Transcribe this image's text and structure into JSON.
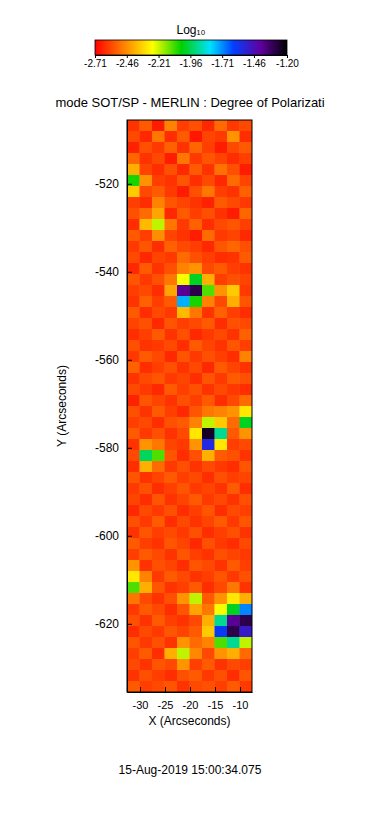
{
  "chart_data": {
    "type": "heatmap",
    "title": "mode SOT/SP - MERLIN : Degree of Polarizati",
    "annotation": "15-Aug-2019 15:00:34.075",
    "xlabel": "X (Arcseconds)",
    "ylabel": "Y (Arcseconds)",
    "xlim": [
      -32.6,
      -7.6
    ],
    "ylim": [
      -635.5,
      -505.5
    ],
    "xticks": [
      -30,
      -25,
      -20,
      -15,
      -10
    ],
    "yticks": [
      -620,
      -600,
      -580,
      -560,
      -540,
      -520
    ],
    "x": [
      -31.35,
      -28.85,
      -26.35,
      -23.85,
      -21.35,
      -18.85,
      -16.35,
      -13.85,
      -11.35,
      -8.85
    ],
    "y": [
      -506.75,
      -509.25,
      -511.75,
      -514.25,
      -516.75,
      -519.25,
      -521.75,
      -524.25,
      -526.75,
      -529.25,
      -531.75,
      -534.25,
      -536.75,
      -539.25,
      -541.75,
      -544.25,
      -546.75,
      -549.25,
      -551.75,
      -554.25,
      -556.75,
      -559.25,
      -561.75,
      -564.25,
      -566.75,
      -569.25,
      -571.75,
      -574.25,
      -576.75,
      -579.25,
      -581.75,
      -584.25,
      -586.75,
      -589.25,
      -591.75,
      -594.25,
      -596.75,
      -599.25,
      -601.75,
      -604.25,
      -606.75,
      -609.25,
      -611.75,
      -614.25,
      -616.75,
      -619.25,
      -621.75,
      -624.25,
      -626.75,
      -629.25,
      -631.75,
      -634.25
    ],
    "z": [
      [
        -2.62,
        -2.55,
        -2.66,
        -2.48,
        -2.6,
        -2.57,
        -2.64,
        -2.52,
        -2.61,
        -2.58
      ],
      [
        -2.58,
        -2.64,
        -2.5,
        -2.63,
        -2.55,
        -2.67,
        -2.59,
        -2.61,
        -2.45,
        -2.63
      ],
      [
        -2.65,
        -2.57,
        -2.61,
        -2.54,
        -2.62,
        -2.53,
        -2.6,
        -2.66,
        -2.58,
        -2.55
      ],
      [
        -2.53,
        -2.62,
        -2.58,
        -2.66,
        -2.5,
        -2.61,
        -2.56,
        -2.59,
        -2.63,
        -2.6
      ],
      [
        -2.4,
        -2.59,
        -2.63,
        -2.57,
        -2.64,
        -2.55,
        -2.62,
        -2.51,
        -2.57,
        -2.66
      ],
      [
        -2.05,
        -2.45,
        -2.6,
        -2.62,
        -2.56,
        -2.63,
        -2.58,
        -2.64,
        -2.52,
        -2.59
      ],
      [
        -2.35,
        -2.58,
        -2.55,
        -2.61,
        -2.66,
        -2.57,
        -2.5,
        -2.6,
        -2.62,
        -2.54
      ],
      [
        -2.6,
        -2.63,
        -2.48,
        -2.56,
        -2.59,
        -2.62,
        -2.65,
        -2.55,
        -2.58,
        -2.61
      ],
      [
        -2.57,
        -2.52,
        -2.42,
        -2.64,
        -2.55,
        -2.6,
        -2.57,
        -2.62,
        -2.66,
        -2.53
      ],
      [
        -2.63,
        -2.38,
        -2.2,
        -2.5,
        -2.61,
        -2.54,
        -2.63,
        -2.58,
        -2.56,
        -2.6
      ],
      [
        -2.55,
        -2.6,
        -2.46,
        -2.59,
        -2.62,
        -2.66,
        -2.52,
        -2.61,
        -2.59,
        -2.64
      ],
      [
        -2.61,
        -2.56,
        -2.63,
        -2.54,
        -2.58,
        -2.6,
        -2.64,
        -2.56,
        -2.53,
        -2.57
      ],
      [
        -2.58,
        -2.64,
        -2.59,
        -2.61,
        -2.52,
        -2.57,
        -2.6,
        -2.63,
        -2.62,
        -2.55
      ],
      [
        -2.64,
        -2.55,
        -2.62,
        -2.57,
        -2.48,
        -2.45,
        -2.58,
        -2.55,
        -2.6,
        -2.62
      ],
      [
        -2.56,
        -2.61,
        -2.57,
        -2.5,
        -2.25,
        -2.0,
        -2.4,
        -2.6,
        -2.57,
        -2.59
      ],
      [
        -2.6,
        -2.58,
        -2.63,
        -2.42,
        -1.4,
        -1.3,
        -2.1,
        -2.45,
        -2.35,
        -2.61
      ],
      [
        -2.62,
        -2.54,
        -2.6,
        -2.55,
        -1.75,
        -2.05,
        -2.48,
        -2.58,
        -2.4,
        -2.56
      ],
      [
        -2.55,
        -2.63,
        -2.58,
        -2.61,
        -2.38,
        -2.5,
        -2.62,
        -2.54,
        -2.6,
        -2.63
      ],
      [
        -2.59,
        -2.57,
        -2.64,
        -2.56,
        -2.6,
        -2.58,
        -2.55,
        -2.63,
        -2.57,
        -2.58
      ],
      [
        -2.63,
        -2.6,
        -2.55,
        -2.62,
        -2.57,
        -2.64,
        -2.61,
        -2.58,
        -2.62,
        -2.54
      ],
      [
        -2.57,
        -2.62,
        -2.61,
        -2.58,
        -2.63,
        -2.55,
        -2.59,
        -2.62,
        -2.56,
        -2.6
      ],
      [
        -2.61,
        -2.55,
        -2.58,
        -2.64,
        -2.56,
        -2.61,
        -2.57,
        -2.6,
        -2.63,
        -2.48
      ],
      [
        -2.54,
        -2.63,
        -2.6,
        -2.57,
        -2.62,
        -2.58,
        -2.64,
        -2.55,
        -2.59,
        -2.62
      ],
      [
        -2.62,
        -2.58,
        -2.56,
        -2.61,
        -2.59,
        -2.63,
        -2.56,
        -2.61,
        -2.55,
        -2.57
      ],
      [
        -2.58,
        -2.61,
        -2.64,
        -2.55,
        -2.6,
        -2.57,
        -2.62,
        -2.58,
        -2.61,
        -2.63
      ],
      [
        -2.65,
        -2.56,
        -2.59,
        -2.62,
        -2.57,
        -2.6,
        -2.55,
        -2.63,
        -2.58,
        -2.52
      ],
      [
        -2.57,
        -2.62,
        -2.55,
        -2.6,
        -2.64,
        -2.56,
        -2.5,
        -2.48,
        -2.45,
        -2.3
      ],
      [
        -2.6,
        -2.58,
        -2.63,
        -2.57,
        -2.55,
        -2.48,
        -2.2,
        -2.35,
        -2.52,
        -2.0
      ],
      [
        -2.55,
        -2.61,
        -2.57,
        -2.62,
        -2.58,
        -2.3,
        -1.25,
        -1.9,
        -2.55,
        -2.45
      ],
      [
        -2.62,
        -2.45,
        -2.5,
        -2.59,
        -2.61,
        -2.45,
        -1.55,
        -2.3,
        -2.6,
        -2.58
      ],
      [
        -2.58,
        -1.95,
        -2.1,
        -2.56,
        -2.63,
        -2.57,
        -2.4,
        -2.55,
        -2.57,
        -2.62
      ],
      [
        -2.63,
        -2.4,
        -2.52,
        -2.61,
        -2.57,
        -2.62,
        -2.58,
        -2.61,
        -2.63,
        -2.56
      ],
      [
        -2.56,
        -2.62,
        -2.59,
        -2.55,
        -2.6,
        -2.58,
        -2.63,
        -2.57,
        -2.6,
        -2.59
      ],
      [
        -2.61,
        -2.57,
        -2.63,
        -2.6,
        -2.56,
        -2.61,
        -2.59,
        -2.62,
        -2.55,
        -2.63
      ],
      [
        -2.59,
        -2.63,
        -2.56,
        -2.62,
        -2.59,
        -2.55,
        -2.61,
        -2.58,
        -2.62,
        -2.57
      ],
      [
        -2.64,
        -2.58,
        -2.61,
        -2.57,
        -2.63,
        -2.6,
        -2.56,
        -2.63,
        -2.58,
        -2.6
      ],
      [
        -2.57,
        -2.61,
        -2.55,
        -2.63,
        -2.58,
        -2.62,
        -2.59,
        -2.55,
        -2.61,
        -2.56
      ],
      [
        -2.62,
        -2.56,
        -2.6,
        -2.58,
        -2.61,
        -2.57,
        -2.63,
        -2.6,
        -2.57,
        -2.62
      ],
      [
        -2.55,
        -2.6,
        -2.62,
        -2.56,
        -2.59,
        -2.64,
        -2.57,
        -2.61,
        -2.63,
        -2.58
      ],
      [
        -2.6,
        -2.55,
        -2.58,
        -2.62,
        -2.56,
        -2.6,
        -2.62,
        -2.57,
        -2.59,
        -2.61
      ],
      [
        -2.45,
        -2.62,
        -2.57,
        -2.59,
        -2.63,
        -2.56,
        -2.58,
        -2.62,
        -2.55,
        -2.6
      ],
      [
        -2.3,
        -2.48,
        -2.61,
        -2.55,
        -2.58,
        -2.62,
        -2.6,
        -2.56,
        -2.61,
        -2.57
      ],
      [
        -2.1,
        -2.4,
        -2.56,
        -2.62,
        -2.6,
        -2.55,
        -2.63,
        -2.58,
        -2.5,
        -2.62
      ],
      [
        -2.5,
        -2.58,
        -2.62,
        -2.57,
        -2.45,
        -2.2,
        -2.55,
        -2.45,
        -2.3,
        -2.4
      ],
      [
        -2.61,
        -2.55,
        -2.58,
        -2.63,
        -2.56,
        -2.42,
        -2.5,
        -2.25,
        -2.0,
        -1.7
      ],
      [
        -2.57,
        -2.62,
        -2.55,
        -2.6,
        -2.62,
        -2.58,
        -2.4,
        -1.9,
        -1.4,
        -1.3
      ],
      [
        -2.63,
        -2.58,
        -2.61,
        -2.56,
        -2.59,
        -2.55,
        -2.35,
        -1.6,
        -1.3,
        -1.5
      ],
      [
        -2.56,
        -2.61,
        -2.57,
        -2.62,
        -2.45,
        -2.52,
        -2.48,
        -2.1,
        -1.9,
        -2.2
      ],
      [
        -2.6,
        -2.55,
        -2.63,
        -2.4,
        -2.2,
        -2.47,
        -2.58,
        -2.45,
        -2.4,
        -2.52
      ],
      [
        -2.58,
        -2.62,
        -2.56,
        -2.58,
        -2.45,
        -2.6,
        -2.55,
        -2.62,
        -2.58,
        -2.6
      ],
      [
        -2.62,
        -2.57,
        -2.6,
        -2.63,
        -2.57,
        -2.55,
        -2.61,
        -2.57,
        -2.63,
        -2.56
      ],
      [
        -2.55,
        -2.6,
        -2.58,
        -2.56,
        -2.62,
        -2.58,
        -2.57,
        -2.6,
        -2.55,
        -2.61
      ]
    ],
    "colorbar": {
      "label": "Log₁₀",
      "range": [
        -2.71,
        -1.2
      ],
      "ticks": [
        -2.71,
        -2.46,
        -2.21,
        -1.96,
        -1.71,
        -1.46,
        {
          "value": -1.2,
          "label": "-1.20"
        }
      ]
    }
  }
}
